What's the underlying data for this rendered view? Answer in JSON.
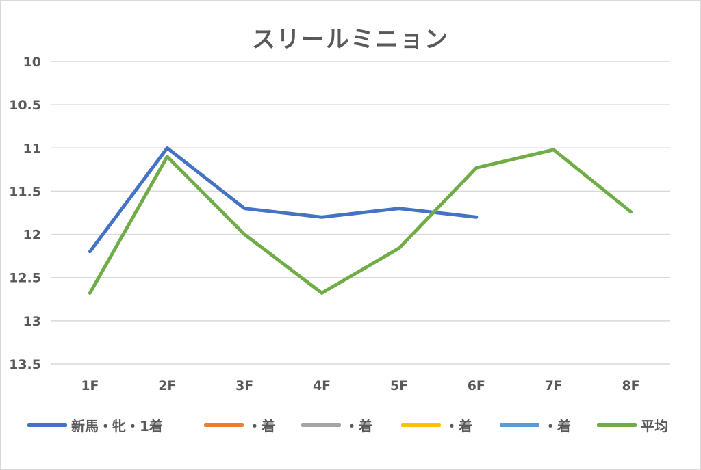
{
  "chart_data": {
    "type": "line",
    "title": "スリールミニョン",
    "categories": [
      "1F",
      "2F",
      "3F",
      "4F",
      "5F",
      "6F",
      "7F",
      "8F"
    ],
    "y_tick_labels": [
      "10",
      "10.5",
      "11",
      "11.5",
      "12",
      "12.5",
      "13",
      "13.5"
    ],
    "ylim": [
      10,
      13.5
    ],
    "y_reversed": true,
    "grid": true,
    "legend_position": "bottom",
    "series": [
      {
        "name": "新馬・牝・1着",
        "color": "#4472C4",
        "values": [
          12.2,
          11.0,
          11.7,
          11.8,
          11.7,
          11.8,
          null,
          null
        ]
      },
      {
        "name": "・着",
        "color": "#ED7D31",
        "values": [
          null,
          null,
          null,
          null,
          null,
          null,
          null,
          null
        ]
      },
      {
        "name": "・着",
        "color": "#A5A5A5",
        "values": [
          null,
          null,
          null,
          null,
          null,
          null,
          null,
          null
        ]
      },
      {
        "name": "・着",
        "color": "#FFC000",
        "values": [
          null,
          null,
          null,
          null,
          null,
          null,
          null,
          null
        ]
      },
      {
        "name": "・着",
        "color": "#5B9BD5",
        "values": [
          null,
          null,
          null,
          null,
          null,
          null,
          null,
          null
        ]
      },
      {
        "name": "平均",
        "color": "#70AD47",
        "values": [
          12.68,
          11.1,
          12.0,
          12.68,
          12.16,
          11.23,
          11.02,
          11.74
        ]
      }
    ]
  }
}
